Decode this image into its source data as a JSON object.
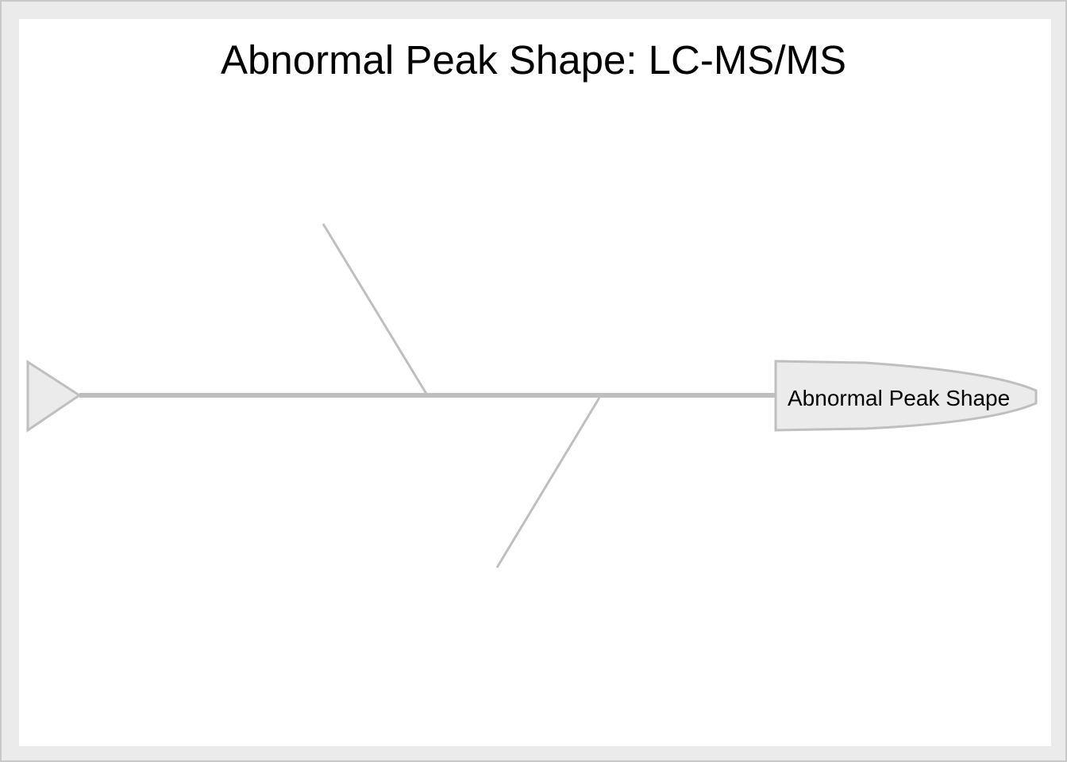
{
  "diagram": {
    "type": "fishbone",
    "title": "Abnormal Peak Shape: LC-MS/MS",
    "effect": "Abnormal Peak Shape",
    "categories": [],
    "colors": {
      "background": "#ebebeb",
      "panel": "#ffffff",
      "line": "#bfbfbf",
      "shape_fill": "#ebebeb",
      "text": "#000000"
    }
  }
}
